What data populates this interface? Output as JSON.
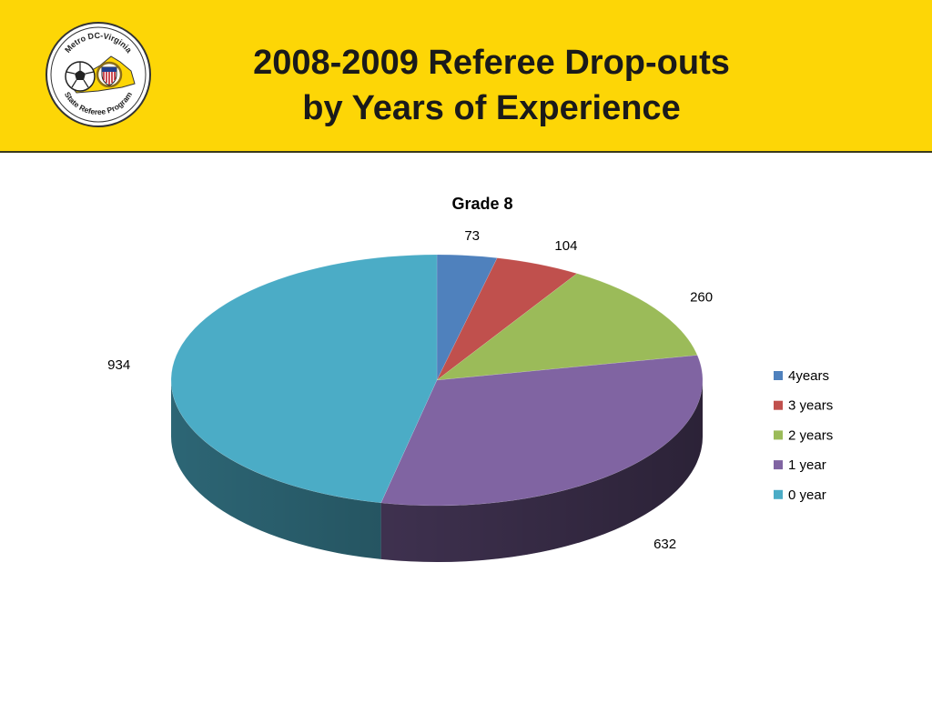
{
  "slide": {
    "title_line1": "2008-2009 Referee Drop-outs",
    "title_line2": "by Years of Experience"
  },
  "logo": {
    "text_top": "Metro DC-Virginia",
    "text_bottom": "State Referee Program",
    "icon": "soccer-ball-shield-virginia-map-logo"
  },
  "chart_data": {
    "type": "pie",
    "style": "3d",
    "title": "Grade 8",
    "legend_position": "right",
    "series": [
      {
        "label": "4years",
        "value": 73,
        "color": "#4f81bd"
      },
      {
        "label": "3 years",
        "value": 104,
        "color": "#c0504d"
      },
      {
        "label": "2 years",
        "value": 260,
        "color": "#9bbb59"
      },
      {
        "label": "1 year",
        "value": 632,
        "color": "#8064a2"
      },
      {
        "label": "0 year",
        "value": 934,
        "color": "#4bacc6"
      }
    ]
  }
}
